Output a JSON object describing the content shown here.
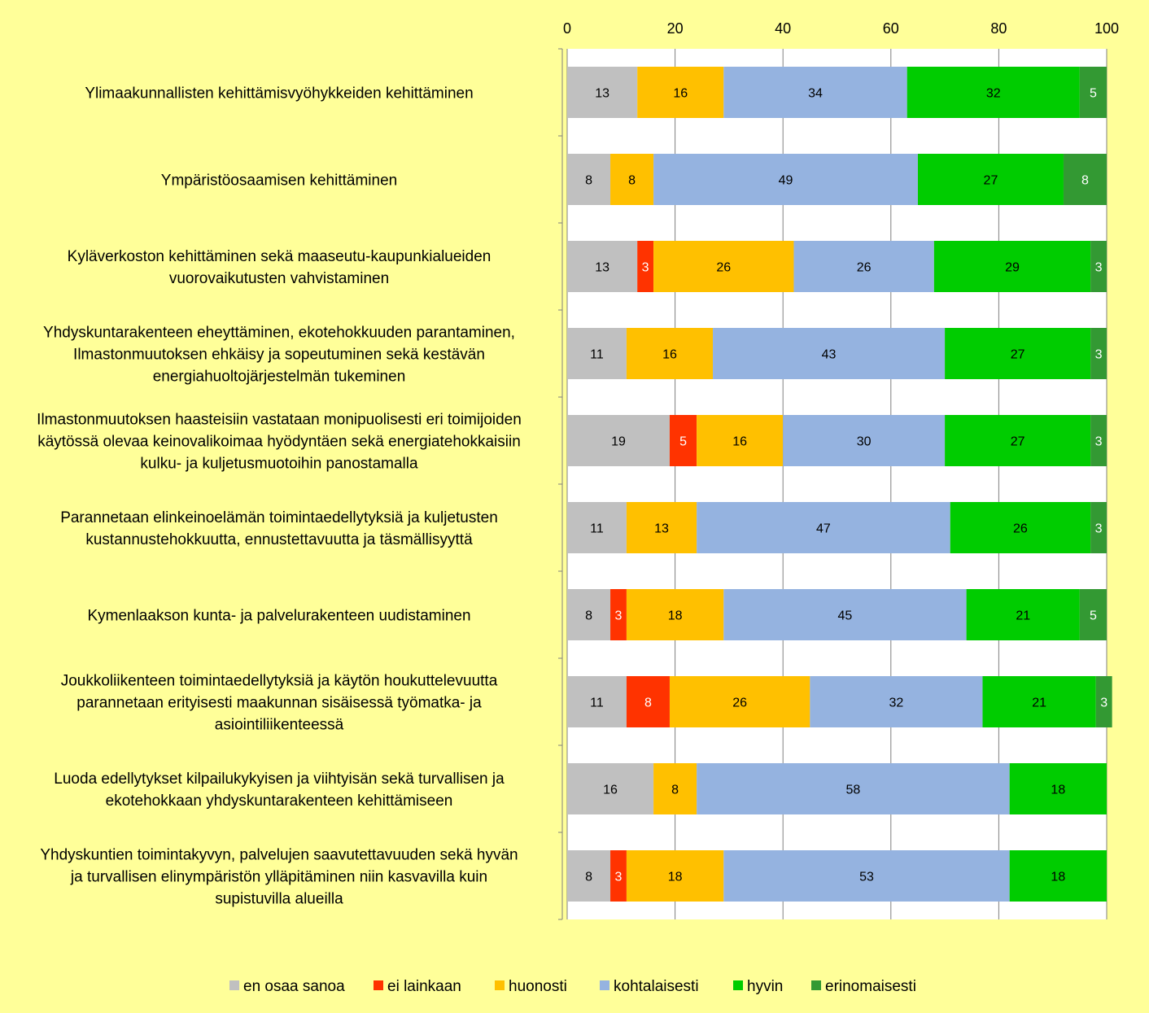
{
  "chart_data": {
    "type": "bar",
    "orientation": "horizontal",
    "stacked": true,
    "xlim": [
      0,
      100
    ],
    "xticks": [
      0,
      20,
      40,
      60,
      80,
      100
    ],
    "x_axis_position": "top",
    "grid": true,
    "legend_position": "bottom",
    "categories": [
      [
        "Ylimaakunnallisten kehittämisvyöhykkeiden kehittäminen"
      ],
      [
        "Ympäristöosaamisen kehittäminen"
      ],
      [
        "Kyläverkoston kehittäminen sekä maaseutu-kaupunkialueiden",
        "vuorovaikutusten vahvistaminen"
      ],
      [
        "Yhdyskuntarakenteen eheyttäminen, ekotehokkuuden parantaminen,",
        "Ilmastonmuutoksen ehkäisy ja sopeutuminen sekä kestävän",
        "energiahuoltojärjestelmän tukeminen"
      ],
      [
        "Ilmastonmuutoksen haasteisiin vastataan monipuolisesti eri toimijoiden",
        "käytössä olevaa keinovalikoimaa hyödyntäen sekä energiatehokkaisiin",
        "kulku- ja kuljetusmuotoihin panostamalla"
      ],
      [
        "Parannetaan elinkeinoelämän toimintaedellytyksiä ja kuljetusten",
        "kustannustehokkuutta, ennustettavuutta ja täsmällisyyttä"
      ],
      [
        "Kymenlaakson kunta- ja palvelurakenteen uudistaminen"
      ],
      [
        "Joukkoliikenteen toimintaedellytyksiä ja käytön houkuttelevuutta",
        "parannetaan erityisesti maakunnan sisäisessä työmatka- ja",
        "asiointiliikenteessä"
      ],
      [
        "Luoda edellytykset kilpailukykyisen ja viihtyisän sekä turvallisen ja",
        "ekotehokkaan yhdyskuntarakenteen kehittämiseen"
      ],
      [
        "Yhdyskuntien toimintakyvyn, palvelujen saavutettavuuden sekä hyvän",
        "ja turvallisen elinympäristön ylläpitäminen niin kasvavilla kuin",
        "supistuvilla alueilla"
      ]
    ],
    "series": [
      {
        "name": "en osaa sanoa",
        "color": "#c0c0c0",
        "label_color": "#000000",
        "values": [
          13,
          8,
          13,
          11,
          19,
          11,
          8,
          11,
          16,
          8
        ]
      },
      {
        "name": "ei lainkaan",
        "color": "#ff3300",
        "label_color": "#ffffff",
        "values": [
          0,
          0,
          3,
          0,
          5,
          0,
          3,
          8,
          0,
          3
        ]
      },
      {
        "name": "huonosti",
        "color": "#ffc000",
        "label_color": "#000000",
        "values": [
          16,
          8,
          26,
          16,
          16,
          13,
          18,
          26,
          8,
          18
        ]
      },
      {
        "name": "kohtalaisesti",
        "color": "#95b3e0",
        "label_color": "#000000",
        "values": [
          34,
          49,
          26,
          43,
          30,
          47,
          45,
          32,
          58,
          53
        ]
      },
      {
        "name": "hyvin",
        "color": "#00cc00",
        "label_color": "#000000",
        "values": [
          32,
          27,
          29,
          27,
          27,
          26,
          21,
          21,
          18,
          18
        ]
      },
      {
        "name": "erinomaisesti",
        "color": "#339933",
        "label_color": "#ffffff",
        "values": [
          5,
          8,
          3,
          3,
          3,
          3,
          5,
          3,
          0,
          0
        ]
      }
    ]
  }
}
